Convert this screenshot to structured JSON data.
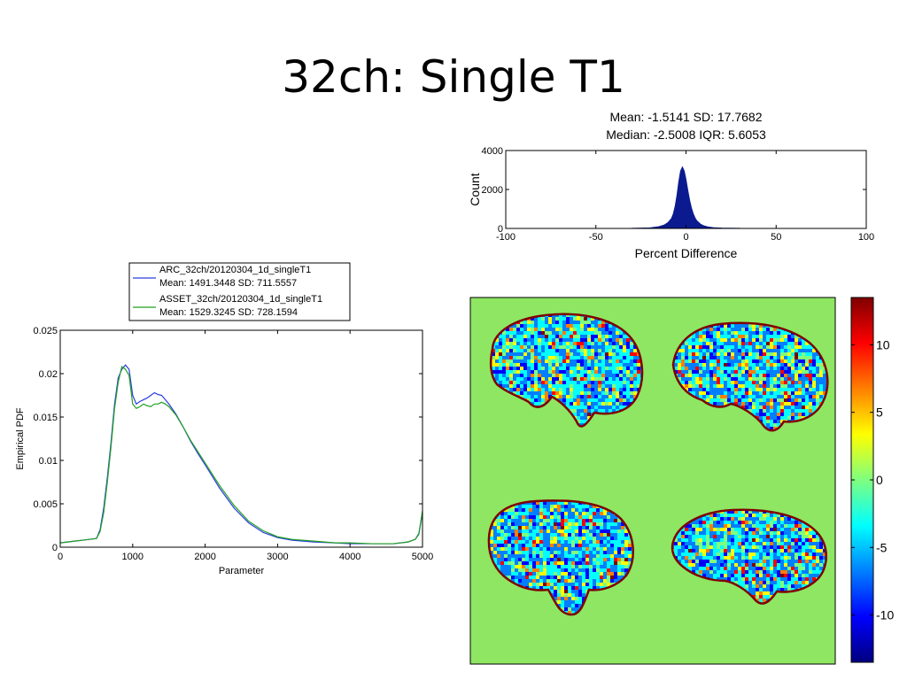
{
  "slide": {
    "title": "32ch: Single T1"
  },
  "chart_data": [
    {
      "type": "area",
      "title": [
        "Mean: -1.5141 SD: 17.7682",
        "Median: -2.5008 IQR: 5.6053"
      ],
      "xlabel": "Percent Difference",
      "ylabel": "Count",
      "xlim": [
        -100,
        100
      ],
      "ylim": [
        0,
        4000
      ],
      "xticks": [
        -100,
        -50,
        0,
        50,
        100
      ],
      "yticks": [
        0,
        2000,
        4000
      ],
      "color": "#0b1b8f",
      "x": [
        -30,
        -20,
        -15,
        -12,
        -10,
        -8,
        -7,
        -6,
        -5,
        -4,
        -3,
        -2,
        -1,
        0,
        1,
        2,
        3,
        4,
        5,
        6,
        8,
        10,
        12,
        15,
        20,
        30
      ],
      "values": [
        5,
        30,
        90,
        180,
        300,
        520,
        760,
        1150,
        1700,
        2400,
        2950,
        3150,
        2950,
        2500,
        1950,
        1450,
        1050,
        760,
        540,
        390,
        220,
        130,
        80,
        40,
        15,
        3
      ]
    },
    {
      "type": "line",
      "xlabel": "Parameter",
      "ylabel": "Empirical PDF",
      "xlim": [
        0,
        5000
      ],
      "ylim": [
        0,
        0.025
      ],
      "xticks": [
        0,
        1000,
        2000,
        3000,
        4000,
        5000
      ],
      "yticks": [
        0,
        0.005,
        0.01,
        0.015,
        0.02,
        0.025
      ],
      "legend": {
        "position": "top",
        "entries": [
          {
            "name": "ARC_32ch/20120304_1d_singleT1",
            "stats": "Mean: 1491.3448 SD: 711.5557",
            "color": "#2b3de0"
          },
          {
            "name": "ASSET_32ch/20120304_1d_singleT1",
            "stats": "Mean: 1529.3245 SD: 728.1594",
            "color": "#22a022"
          }
        ]
      },
      "series": [
        {
          "name": "ARC_32ch/20120304_1d_singleT1",
          "color": "#2b3de0",
          "x": [
            0,
            100,
            200,
            300,
            400,
            500,
            550,
            600,
            650,
            700,
            750,
            800,
            850,
            900,
            950,
            1000,
            1050,
            1100,
            1150,
            1200,
            1250,
            1300,
            1350,
            1400,
            1450,
            1500,
            1600,
            1700,
            1800,
            1900,
            2000,
            2200,
            2400,
            2600,
            2800,
            3000,
            3200,
            3500,
            3800,
            4000,
            4300,
            4600,
            4800,
            4900,
            4950,
            5000
          ],
          "y": [
            0.0005,
            0.0006,
            0.0007,
            0.0008,
            0.0009,
            0.001,
            0.002,
            0.0045,
            0.008,
            0.012,
            0.0165,
            0.0195,
            0.0205,
            0.021,
            0.0205,
            0.0175,
            0.0165,
            0.0168,
            0.017,
            0.0172,
            0.0175,
            0.0178,
            0.0176,
            0.0175,
            0.017,
            0.0165,
            0.0153,
            0.0138,
            0.0122,
            0.0108,
            0.0095,
            0.0068,
            0.0045,
            0.0028,
            0.0017,
            0.0011,
            0.0008,
            0.0006,
            0.0005,
            0.0004,
            0.0004,
            0.0004,
            0.0006,
            0.0009,
            0.0015,
            0.004
          ]
        },
        {
          "name": "ASSET_32ch/20120304_1d_singleT1",
          "color": "#22a022",
          "x": [
            0,
            100,
            200,
            300,
            400,
            500,
            550,
            600,
            650,
            700,
            750,
            800,
            850,
            900,
            950,
            1000,
            1050,
            1100,
            1150,
            1200,
            1250,
            1300,
            1350,
            1400,
            1450,
            1500,
            1600,
            1700,
            1800,
            1900,
            2000,
            2200,
            2400,
            2600,
            2800,
            3000,
            3200,
            3500,
            3800,
            4000,
            4300,
            4600,
            4800,
            4900,
            4950,
            5000
          ],
          "y": [
            0.0005,
            0.0006,
            0.0007,
            0.0008,
            0.0009,
            0.001,
            0.0018,
            0.004,
            0.0075,
            0.0115,
            0.016,
            0.019,
            0.0208,
            0.0205,
            0.0198,
            0.0165,
            0.016,
            0.0162,
            0.0165,
            0.0163,
            0.0162,
            0.0165,
            0.0165,
            0.0167,
            0.0165,
            0.0162,
            0.0152,
            0.0138,
            0.0123,
            0.011,
            0.0097,
            0.0071,
            0.0048,
            0.003,
            0.0019,
            0.0012,
            0.0009,
            0.0007,
            0.0005,
            0.0005,
            0.0004,
            0.0004,
            0.0006,
            0.0009,
            0.0016,
            0.0042
          ]
        }
      ]
    },
    {
      "type": "heatmap",
      "background_color": "#8ee663",
      "panels": 4,
      "colorbar": {
        "ticks": [
          10,
          5,
          0,
          -5,
          -10
        ],
        "range": [
          -13.5,
          13.5
        ],
        "colors": [
          "#00007f",
          "#0000ff",
          "#007fff",
          "#00ffff",
          "#7fff7f",
          "#ffff00",
          "#ff7f00",
          "#ff0000",
          "#7f0000"
        ]
      }
    }
  ]
}
